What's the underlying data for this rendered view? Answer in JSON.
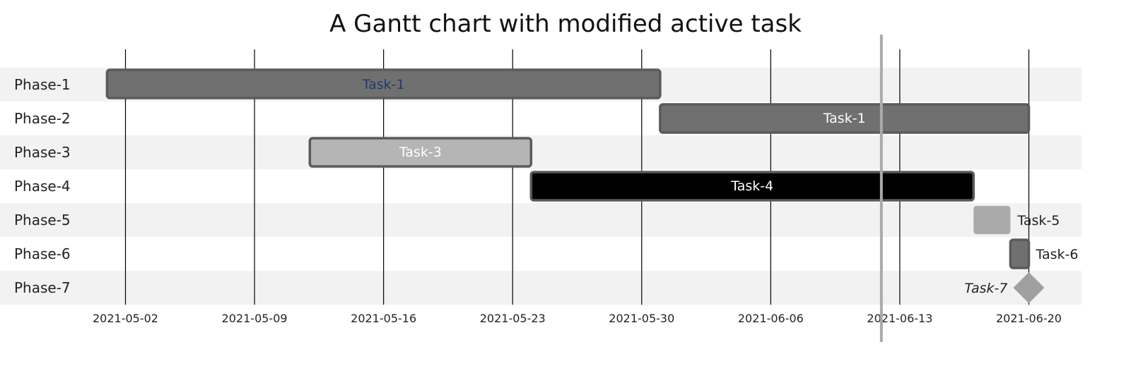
{
  "chart_data": {
    "type": "gantt",
    "title": "A Gantt chart with modified active task",
    "x_axis": {
      "type": "date",
      "range": [
        "2021-04-26",
        "2021-06-22"
      ],
      "ticks": [
        "2021-05-02",
        "2021-05-09",
        "2021-05-16",
        "2021-05-23",
        "2021-05-30",
        "2021-06-06",
        "2021-06-13",
        "2021-06-20"
      ],
      "grid": true
    },
    "today_marker": "2021-06-12",
    "categories": [
      "Phase-1",
      "Phase-2",
      "Phase-3",
      "Phase-4",
      "Phase-5",
      "Phase-6",
      "Phase-7"
    ],
    "tasks": [
      {
        "phase": "Phase-1",
        "name": "Task-1",
        "start": "2021-05-01",
        "end": "2021-05-31",
        "fill": "#707070",
        "label_color": "#1f3a6e",
        "label_position": "inside",
        "active": true
      },
      {
        "phase": "Phase-2",
        "name": "Task-1",
        "start": "2021-05-31",
        "end": "2021-06-20",
        "fill": "#707070",
        "label_color": "#ffffff",
        "label_position": "inside"
      },
      {
        "phase": "Phase-3",
        "name": "Task-3",
        "start": "2021-05-12",
        "end": "2021-05-24",
        "fill": "#b5b5b5",
        "label_color": "#ffffff",
        "label_position": "inside"
      },
      {
        "phase": "Phase-4",
        "name": "Task-4",
        "start": "2021-05-24",
        "end": "2021-06-17",
        "fill": "#000000",
        "label_color": "#ffffff",
        "label_position": "inside"
      },
      {
        "phase": "Phase-5",
        "name": "Task-5",
        "start": "2021-06-17",
        "end": "2021-06-19",
        "fill": "#aaaaaa",
        "label_color": "#222222",
        "label_position": "right",
        "no_border": true
      },
      {
        "phase": "Phase-6",
        "name": "Task-6",
        "start": "2021-06-19",
        "end": "2021-06-20",
        "fill": "#707070",
        "label_color": "#222222",
        "label_position": "right"
      },
      {
        "phase": "Phase-7",
        "name": "Task-7",
        "start": "2021-06-20",
        "end": "2021-06-20",
        "milestone": true,
        "fill": "#a0a0a0",
        "label_color": "#222222",
        "label_position": "left",
        "italic": true
      }
    ],
    "band_colors": [
      "#f2f2f2",
      "#ffffff"
    ],
    "border_color": "#5a5a5a",
    "grid_color": "#000000",
    "today_color": "#aaaaaa"
  }
}
